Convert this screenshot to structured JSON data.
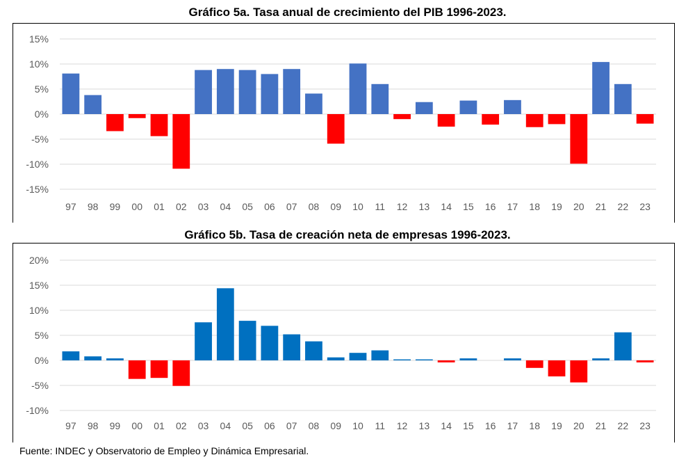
{
  "chart_data": [
    {
      "type": "bar",
      "title": "Gráfico 5a. Tasa anual de crecimiento del PIB 1996-2023.",
      "categories": [
        "97",
        "98",
        "99",
        "00",
        "01",
        "02",
        "03",
        "04",
        "05",
        "06",
        "07",
        "08",
        "09",
        "10",
        "11",
        "12",
        "13",
        "14",
        "15",
        "16",
        "17",
        "18",
        "19",
        "20",
        "21",
        "22",
        "23"
      ],
      "values": [
        8.1,
        3.8,
        -3.4,
        -0.8,
        -4.4,
        -10.9,
        8.8,
        9.0,
        8.8,
        8.0,
        9.0,
        4.1,
        -5.9,
        10.1,
        6.0,
        -1.0,
        2.4,
        -2.5,
        2.7,
        -2.1,
        2.8,
        -2.6,
        -2.0,
        -9.9,
        10.4,
        6.0,
        -1.9
      ],
      "ylim": [
        -15,
        15
      ],
      "yticks": [
        "15%",
        "10%",
        "5%",
        "0%",
        "-5%",
        "-10%",
        "-15%"
      ],
      "ytick_values": [
        15,
        10,
        5,
        0,
        -5,
        -10,
        -15
      ],
      "grid": true,
      "colors": {
        "positive": "#4472C4",
        "negative": "#FF0000"
      }
    },
    {
      "type": "bar",
      "title": "Gráfico 5b. Tasa de creación neta de empresas 1996-2023.",
      "categories": [
        "97",
        "98",
        "99",
        "00",
        "01",
        "02",
        "03",
        "04",
        "05",
        "06",
        "07",
        "08",
        "09",
        "10",
        "11",
        "12",
        "13",
        "14",
        "15",
        "16",
        "17",
        "18",
        "19",
        "20",
        "21",
        "22",
        "23"
      ],
      "values": [
        1.8,
        0.8,
        0.4,
        -3.7,
        -3.5,
        -5.1,
        7.6,
        14.4,
        7.9,
        6.9,
        5.2,
        3.8,
        0.6,
        1.5,
        2.0,
        0.2,
        0.2,
        -0.4,
        0.4,
        0.0,
        0.4,
        -1.5,
        -3.2,
        -4.4,
        0.4,
        5.6,
        -0.4
      ],
      "ylim": [
        -10,
        20
      ],
      "yticks": [
        "20%",
        "15%",
        "10%",
        "5%",
        "0%",
        "-5%",
        "-10%"
      ],
      "ytick_values": [
        20,
        15,
        10,
        5,
        0,
        -5,
        -10
      ],
      "grid": true,
      "colors": {
        "positive": "#0070C0",
        "negative": "#FF0000"
      }
    }
  ],
  "source": "Fuente: INDEC y Observatorio de Empleo y Dinámica Empresarial."
}
